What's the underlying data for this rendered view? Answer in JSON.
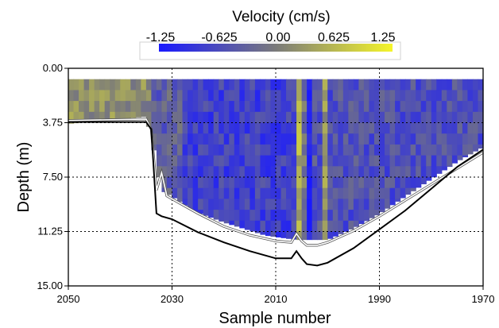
{
  "chart_data": {
    "type": "heatmap",
    "title": "",
    "colorbar": {
      "title": "Velocity (cm/s)",
      "tick_labels": [
        "-1.25",
        "-0.625",
        "0.00",
        "0.625",
        "1.25"
      ],
      "range": [
        -1.25,
        1.25
      ],
      "colors": [
        "#1a1aff",
        "#7a7a7a",
        "#f5f52a"
      ]
    },
    "xlabel": "Sample number",
    "ylabel": "Depth (m)",
    "xlim": [
      2050,
      1970
    ],
    "ylim": [
      15.0,
      0.0
    ],
    "x_reversed": true,
    "y_inverted": true,
    "xticks": [
      2050,
      2030,
      2010,
      1990,
      1970
    ],
    "xtick_labels": [
      "2050",
      "2030",
      "2010",
      "1990",
      "1970"
    ],
    "yticks": [
      0.0,
      3.75,
      7.5,
      11.25,
      15.0
    ],
    "ytick_labels": [
      "0.00",
      "3.75",
      "7.50",
      "11.25",
      "15.00"
    ],
    "grid": "dashed",
    "velocity_grid": {
      "x_start": 2050,
      "x_step": 1,
      "x_count": 80,
      "depth_start": 0.75,
      "depth_step": 0.75,
      "depth_count": 16,
      "bands": [
        {
          "x": [
            2050,
            2034
          ],
          "mean": 0.2
        },
        {
          "x": [
            2034,
            2028
          ],
          "mean": -0.35
        },
        {
          "x": [
            2028,
            2006
          ],
          "mean": -0.75
        },
        {
          "x": [
            2006,
            2005
          ],
          "mean": 0.5
        },
        {
          "x": [
            2005,
            2004
          ],
          "mean": -0.1
        },
        {
          "x": [
            2004,
            2003
          ],
          "mean": -1.25
        },
        {
          "x": [
            2003,
            2001
          ],
          "mean": -0.5
        },
        {
          "x": [
            2001,
            2000
          ],
          "mean": 0.3
        },
        {
          "x": [
            2000,
            1970
          ],
          "mean": -0.55
        }
      ]
    },
    "data_extent_depth": {
      "x": [
        2050,
        2035,
        2034,
        2032,
        2030,
        2026,
        2020,
        2012,
        2006,
        2000,
        1995,
        1990,
        1985,
        1980,
        1975,
        1970
      ],
      "depth": [
        3.8,
        3.3,
        4.7,
        8.4,
        8.8,
        9.8,
        10.6,
        11.5,
        11.8,
        11.8,
        11.0,
        10.0,
        8.8,
        7.6,
        6.4,
        5.4
      ]
    },
    "series": [
      {
        "x": [
          2050,
          2035,
          2034,
          2033,
          2032,
          2031,
          2030,
          2025,
          2020,
          2015,
          2010,
          2007,
          2006,
          2005,
          2004,
          2002,
          2000,
          1995,
          1990,
          1985,
          1980,
          1975,
          1970
        ],
        "y": [
          3.6,
          3.5,
          4.2,
          8.4,
          7.2,
          8.8,
          9.0,
          10.0,
          10.9,
          11.5,
          11.9,
          12.0,
          11.4,
          11.9,
          12.2,
          12.2,
          12.0,
          11.2,
          10.2,
          9.1,
          8.0,
          6.9,
          5.8
        ],
        "color": "#ffffff"
      },
      {
        "x": [
          2050,
          2035,
          2034,
          2033,
          2032,
          2030,
          2025,
          2020,
          2015,
          2010,
          2007,
          2006,
          2005,
          2004,
          2002,
          2000,
          1995,
          1990,
          1985,
          1980,
          1975,
          1970
        ],
        "y": [
          3.7,
          3.7,
          4.2,
          10.0,
          10.2,
          10.4,
          11.3,
          12.0,
          12.6,
          13.1,
          13.1,
          12.6,
          13.1,
          13.5,
          13.6,
          13.4,
          12.4,
          11.1,
          9.8,
          8.3,
          6.8,
          5.6
        ],
        "color": "#000000"
      }
    ]
  }
}
